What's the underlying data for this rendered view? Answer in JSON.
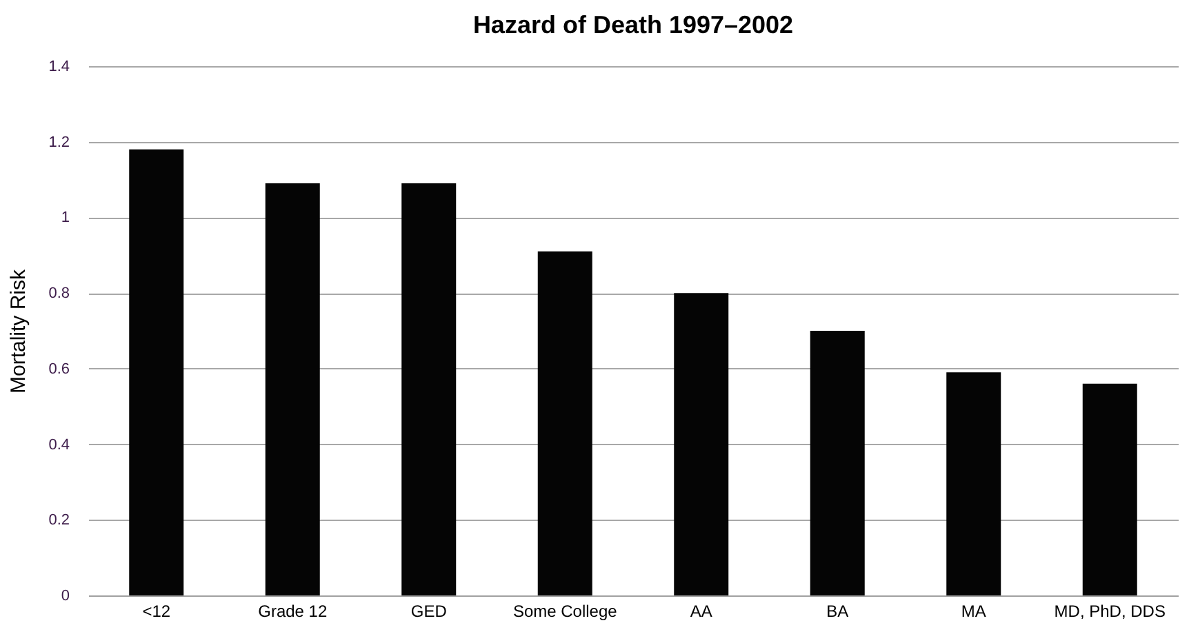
{
  "chart_data": {
    "type": "bar",
    "title": "Hazard of Death 1997–2002",
    "ylabel": "Mortality Risk",
    "categories": [
      "<12",
      "Grade 12",
      "GED",
      "Some College",
      "AA",
      "BA",
      "MA",
      "MD, PhD, DDS"
    ],
    "values": [
      1.18,
      1.09,
      1.09,
      0.91,
      0.8,
      0.7,
      0.59,
      0.56
    ],
    "color": "#050505",
    "ylim": [
      0,
      1.4
    ],
    "yticks": [
      0,
      0.2,
      0.4,
      0.6,
      0.8,
      1,
      1.2,
      1.4
    ],
    "grid": "y"
  }
}
